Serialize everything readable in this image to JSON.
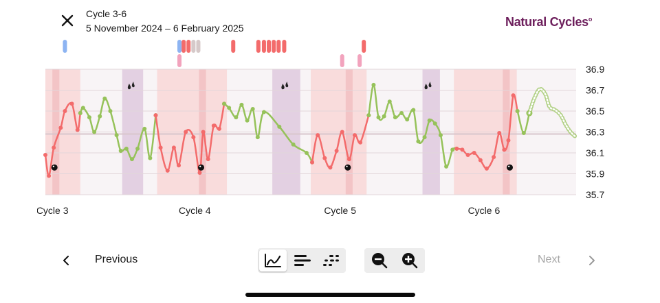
{
  "header": {
    "title": "Cycle 3-6",
    "subtitle": "5 November 2024 – 6 February 2025",
    "logo_text": "Natural Cycles",
    "close_icon": "close-icon"
  },
  "colors": {
    "red": "#f36b6b",
    "green": "#96c25a",
    "fertile_band": "#f9dcdc",
    "period_band": "#f3c4c6",
    "pms_band": "#e3d0e2",
    "neutral_band": "#f8f4f6",
    "brand": "#6d1f5c",
    "blue_marker": "#8db4f2",
    "pink_marker": "#f2a3bd",
    "grey_marker": "#d6c9c9"
  },
  "chart_data": {
    "type": "line",
    "y_ticks": [
      "36.9",
      "36.7",
      "36.5",
      "36.3",
      "36.1",
      "35.9",
      "35.7"
    ],
    "ylim": [
      35.7,
      36.9
    ],
    "cover_line": 36.28,
    "days_visible": 76,
    "cycle_labels": [
      {
        "label": "Cycle 3",
        "day": 1
      },
      {
        "label": "Cycle 4",
        "day": 21.4
      },
      {
        "label": "Cycle 5",
        "day": 42.2
      },
      {
        "label": "Cycle 6",
        "day": 62.8
      }
    ],
    "bands": [
      {
        "type": "fertile",
        "start": 0,
        "end": 5
      },
      {
        "type": "period",
        "start": 1,
        "end": 2
      },
      {
        "type": "pms",
        "start": 11,
        "end": 14
      },
      {
        "type": "fertile",
        "start": 16,
        "end": 26
      },
      {
        "type": "period",
        "start": 22,
        "end": 23
      },
      {
        "type": "pms",
        "start": 32.5,
        "end": 36.5
      },
      {
        "type": "fertile",
        "start": 38,
        "end": 46
      },
      {
        "type": "period",
        "start": 43,
        "end": 44
      },
      {
        "type": "pms",
        "start": 54,
        "end": 56.5
      },
      {
        "type": "fertile",
        "start": 58.5,
        "end": 67.5
      },
      {
        "type": "period",
        "start": 65.5,
        "end": 66.5
      }
    ],
    "drop_markers": [
      12.3,
      34.3,
      54.8
    ],
    "ball_markers": [
      {
        "day": 1.3,
        "temp": 35.96
      },
      {
        "day": 22.3,
        "temp": 35.96
      },
      {
        "day": 43.3,
        "temp": 35.96
      },
      {
        "day": 66.5,
        "temp": 35.96
      }
    ],
    "series": [
      {
        "name": "segment1",
        "color": "red",
        "points": [
          [
            0,
            36.08
          ],
          [
            0.5,
            35.88
          ],
          [
            1.2,
            36.15
          ],
          [
            2.2,
            36.34
          ],
          [
            2.8,
            36.5
          ],
          [
            3.8,
            36.57
          ],
          [
            4.6,
            36.32
          ],
          [
            5.0,
            36.48
          ]
        ]
      },
      {
        "name": "segment2",
        "color": "green",
        "points": [
          [
            5.0,
            36.48
          ],
          [
            5.4,
            36.53
          ],
          [
            6.3,
            36.44
          ],
          [
            7.0,
            36.3
          ],
          [
            7.8,
            36.45
          ],
          [
            8.5,
            36.62
          ],
          [
            9.3,
            36.5
          ],
          [
            10.2,
            36.27
          ],
          [
            10.8,
            36.12
          ],
          [
            11.6,
            36.14
          ],
          [
            12.4,
            36.04
          ],
          [
            13.2,
            36.14
          ],
          [
            14.2,
            36.33
          ],
          [
            15.0,
            36.05
          ],
          [
            15.8,
            36.46
          ]
        ]
      },
      {
        "name": "segment3",
        "color": "red",
        "points": [
          [
            15.8,
            36.46
          ],
          [
            16.5,
            36.15
          ],
          [
            17.5,
            35.93
          ],
          [
            18.4,
            36.15
          ],
          [
            19.1,
            35.98
          ],
          [
            20.1,
            36.3
          ],
          [
            21.2,
            36.25
          ],
          [
            22.1,
            35.91
          ],
          [
            22.6,
            36.3
          ],
          [
            23.3,
            36.04
          ],
          [
            24.1,
            36.36
          ],
          [
            24.9,
            36.33
          ],
          [
            25.6,
            36.57
          ]
        ]
      },
      {
        "name": "segment4",
        "color": "green",
        "points": [
          [
            25.6,
            36.57
          ],
          [
            26.3,
            36.53
          ],
          [
            27.3,
            36.44
          ],
          [
            28.1,
            36.56
          ],
          [
            28.9,
            36.41
          ],
          [
            29.7,
            36.52
          ],
          [
            30.4,
            36.25
          ],
          [
            31.3,
            36.49
          ],
          [
            33.5,
            36.35
          ],
          [
            35.5,
            36.18
          ],
          [
            37.4,
            36.1
          ],
          [
            38.2,
            36.01
          ]
        ]
      },
      {
        "name": "segment5",
        "color": "red",
        "points": [
          [
            38.2,
            36.01
          ],
          [
            39.0,
            36.27
          ],
          [
            40.0,
            36.05
          ],
          [
            40.8,
            35.96
          ],
          [
            41.7,
            36.12
          ],
          [
            42.5,
            36.3
          ],
          [
            43.5,
            36.04
          ],
          [
            44.3,
            36.27
          ],
          [
            45.1,
            36.2
          ],
          [
            46.3,
            36.46
          ]
        ]
      },
      {
        "name": "segment6",
        "color": "green",
        "points": [
          [
            46.3,
            36.46
          ],
          [
            47.0,
            36.75
          ],
          [
            47.7,
            36.44
          ],
          [
            48.5,
            36.45
          ],
          [
            49.3,
            36.59
          ],
          [
            50.1,
            36.44
          ],
          [
            51.0,
            36.48
          ],
          [
            51.8,
            36.42
          ],
          [
            52.7,
            36.51
          ],
          [
            53.4,
            36.21
          ],
          [
            54.3,
            36.25
          ],
          [
            55.0,
            36.41
          ],
          [
            55.8,
            36.38
          ],
          [
            56.6,
            36.27
          ],
          [
            57.4,
            35.97
          ],
          [
            58.3,
            36.13
          ],
          [
            58.9,
            36.14
          ]
        ]
      },
      {
        "name": "segment7",
        "color": "red",
        "points": [
          [
            58.9,
            36.14
          ],
          [
            59.7,
            36.13
          ],
          [
            60.5,
            36.08
          ],
          [
            61.4,
            36.1
          ],
          [
            62.3,
            36.03
          ],
          [
            63.2,
            35.95
          ],
          [
            64.2,
            36.06
          ],
          [
            65.0,
            36.29
          ],
          [
            65.7,
            36.13
          ],
          [
            66.3,
            36.22
          ],
          [
            67.0,
            36.65
          ],
          [
            67.6,
            36.5
          ]
        ]
      },
      {
        "name": "segment8",
        "color": "green",
        "points": [
          [
            67.6,
            36.5
          ],
          [
            68.5,
            36.29
          ],
          [
            69.3,
            36.48
          ]
        ]
      },
      {
        "name": "predicted",
        "color": "green",
        "dashed": true,
        "points": [
          [
            69.3,
            36.48
          ],
          [
            70.0,
            36.62
          ],
          [
            70.8,
            36.71
          ],
          [
            71.6,
            36.66
          ],
          [
            72.2,
            36.54
          ],
          [
            73.0,
            36.51
          ],
          [
            73.8,
            36.46
          ],
          [
            74.5,
            36.37
          ],
          [
            75.2,
            36.3
          ],
          [
            76.0,
            36.25
          ]
        ]
      }
    ],
    "top_markers": [
      {
        "day": 2.8,
        "row": 1,
        "color": "blue_marker"
      },
      {
        "day": 19.2,
        "row": 1,
        "color": "blue_marker"
      },
      {
        "day": 19.2,
        "row": 2,
        "color": "pink_marker"
      },
      {
        "day": 19.8,
        "row": 1,
        "color": "red"
      },
      {
        "day": 20.5,
        "row": 1,
        "color": "red"
      },
      {
        "day": 21.2,
        "row": 1,
        "color": "grey_marker"
      },
      {
        "day": 21.9,
        "row": 1,
        "color": "grey_marker"
      },
      {
        "day": 26.9,
        "row": 1,
        "color": "red"
      },
      {
        "day": 30.5,
        "row": 1,
        "color": "red"
      },
      {
        "day": 31.3,
        "row": 1,
        "color": "red"
      },
      {
        "day": 32.0,
        "row": 1,
        "color": "red"
      },
      {
        "day": 32.7,
        "row": 1,
        "color": "red"
      },
      {
        "day": 33.4,
        "row": 1,
        "color": "red"
      },
      {
        "day": 34.2,
        "row": 1,
        "color": "red"
      },
      {
        "day": 42.5,
        "row": 2,
        "color": "pink_marker"
      },
      {
        "day": 45.0,
        "row": 2,
        "color": "pink_marker"
      },
      {
        "day": 45.6,
        "row": 1,
        "color": "red"
      }
    ]
  },
  "bottom": {
    "previous_label": "Previous",
    "next_label": "Next",
    "view_buttons": [
      "line-chart-icon",
      "bar-list-icon",
      "dots-icon"
    ],
    "zoom_buttons": [
      "zoom-out-icon",
      "zoom-in-icon"
    ]
  }
}
